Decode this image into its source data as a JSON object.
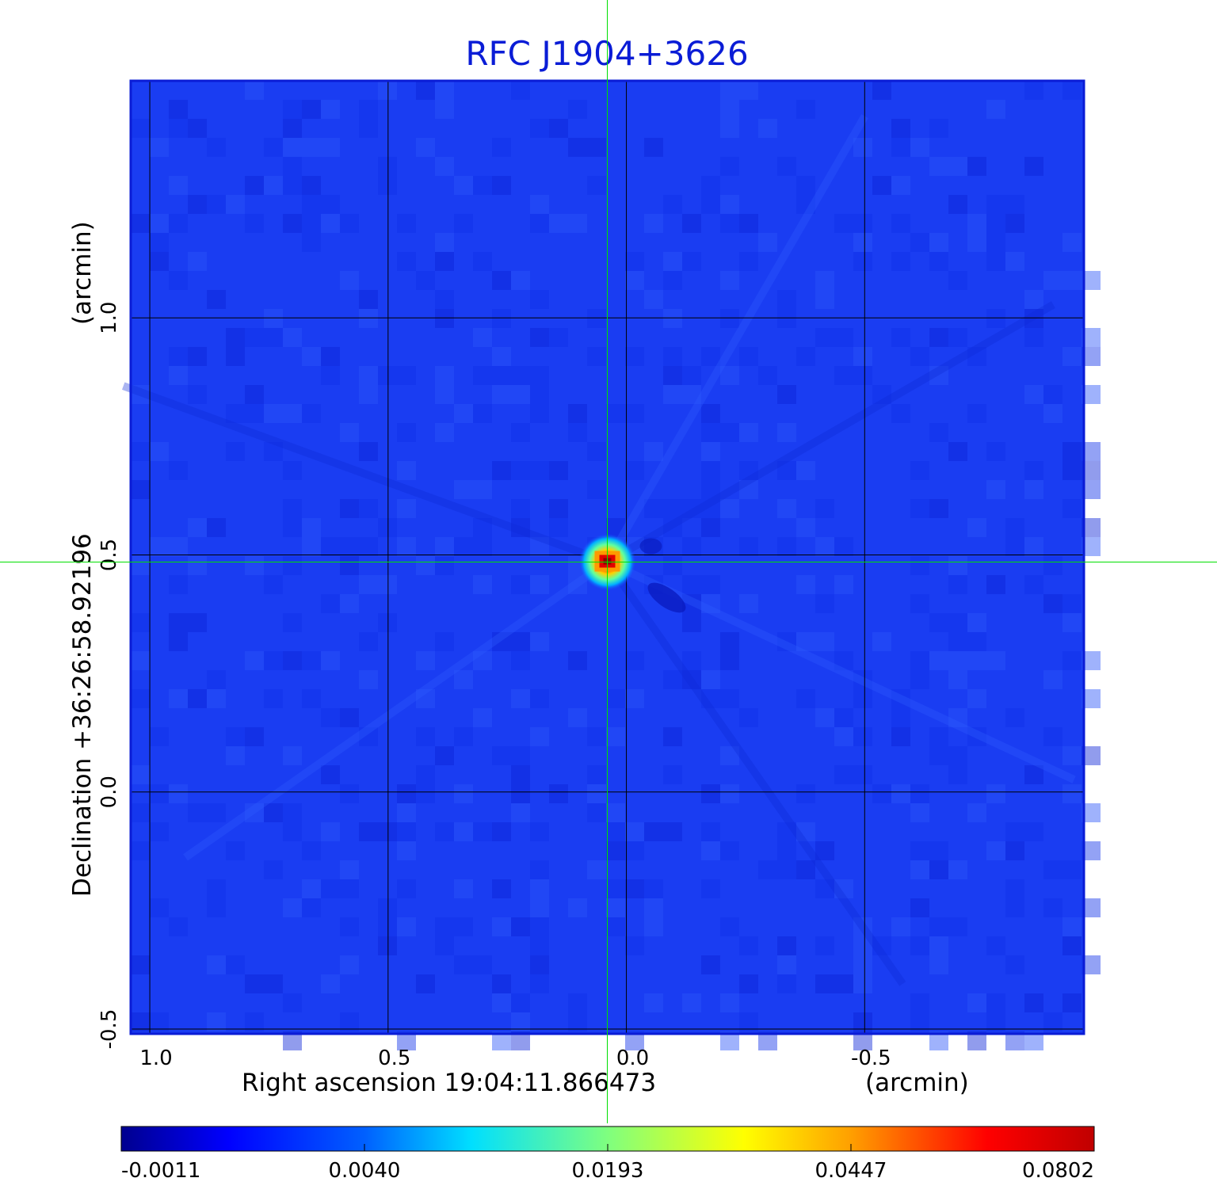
{
  "chart_data": {
    "type": "heatmap",
    "title": "RFC J1904+3626",
    "xlabel": "Right ascension  19:04:11.866473",
    "xunit": "(arcmin)",
    "ylabel": "Declination  +36:26:58.92196",
    "yunit": "(arcmin)",
    "xlim": [
      1.04,
      -0.96
    ],
    "ylim": [
      -0.51,
      1.5
    ],
    "x_ticks": [
      1.0,
      0.5,
      0.0,
      -0.5
    ],
    "x_tick_labels": [
      "1.0",
      "0.5",
      "0.0",
      "-0.5"
    ],
    "y_ticks": [
      -0.5,
      0.0,
      0.5,
      1.0
    ],
    "y_tick_labels": [
      "-0.5",
      "0.0",
      "0.5",
      "1.0"
    ],
    "grid": true,
    "crosshair": {
      "x": 0.04,
      "y": 0.485,
      "color": "#00e000"
    },
    "source": {
      "x": 0.04,
      "y": 0.485,
      "peak": 0.0802
    },
    "colormap": "jet",
    "colorbar": {
      "orientation": "horizontal",
      "min": -0.0011,
      "max": 0.0802,
      "tick_labels": [
        "-0.0011",
        "0.0040",
        "0.0193",
        "0.0447",
        "0.0802"
      ]
    }
  }
}
